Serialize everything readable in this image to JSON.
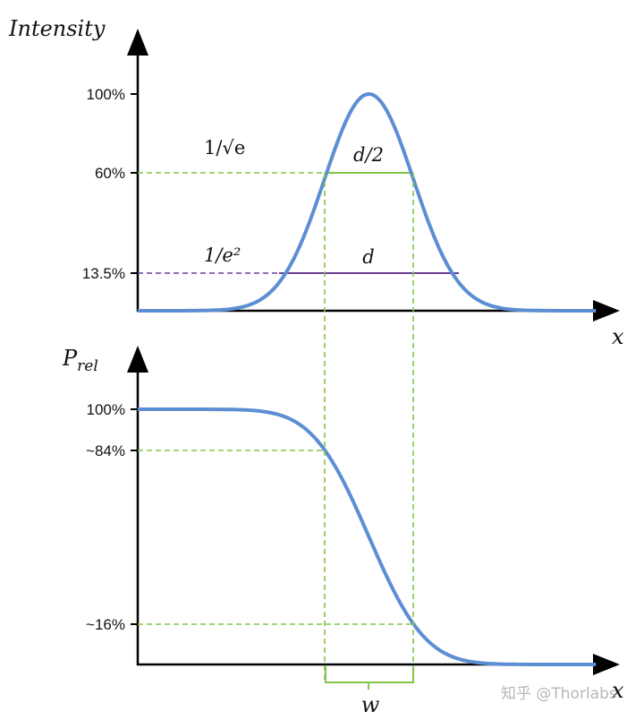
{
  "chart_data": [
    {
      "type": "line",
      "ylabel": "Intensity",
      "xlabel": "x",
      "yticks": [
        "100%",
        "60%",
        "13.5%"
      ],
      "ylim": [
        0,
        100
      ],
      "xlim": [
        -2.5,
        2.5
      ],
      "grid": false,
      "annotations": {
        "sqrt_e": "1/√e",
        "d_half": "d/2",
        "e2": "1/e²",
        "d": "d"
      },
      "levels": [
        {
          "name": "1/√e",
          "y": 60,
          "x_range": [
            -0.5,
            0.5
          ],
          "style": "dashed-green"
        },
        {
          "name": "1/e²",
          "y": 13.5,
          "x_range": [
            -1,
            1
          ],
          "style": "dashed-purple"
        }
      ],
      "series": [
        {
          "x": [
            -2.5,
            -2.0,
            -1.5,
            -1.25,
            -1.0,
            -0.75,
            -0.5,
            -0.25,
            0,
            0.25,
            0.5,
            0.75,
            1.0,
            1.25,
            1.5,
            2.0,
            2.5
          ],
          "y": [
            0.0004,
            0.03,
            1.1,
            4.4,
            13.5,
            32.5,
            60.7,
            88.2,
            100,
            88.2,
            60.7,
            32.5,
            13.5,
            4.4,
            1.1,
            0.03,
            0.0004
          ]
        }
      ]
    },
    {
      "type": "line",
      "ylabel": "P",
      "ylabel_sub": "rel",
      "xlabel": "x",
      "yticks": [
        "100%",
        "~84%",
        "~16%"
      ],
      "ylim": [
        0,
        100
      ],
      "xlim": [
        -2.5,
        2.5
      ],
      "grid": false,
      "annotations": {
        "w": "w"
      },
      "levels": [
        {
          "name": "~84%",
          "y": 84,
          "x": -0.5
        },
        {
          "name": "~16%",
          "y": 16,
          "x": 0.5
        }
      ],
      "series": [
        {
          "x": [
            -2.5,
            -2.0,
            -1.5,
            -1.0,
            -0.75,
            -0.5,
            -0.25,
            0,
            0.25,
            0.5,
            0.75,
            1.0,
            1.5,
            2.0,
            2.5
          ],
          "y": [
            100,
            100,
            99.9,
            97.7,
            93.3,
            84.1,
            69.1,
            50,
            30.9,
            15.9,
            6.7,
            2.3,
            0.1,
            0,
            0
          ]
        }
      ]
    }
  ],
  "colors": {
    "curve": "#5b8ed2",
    "guide": "#84c54a",
    "purple": "#6a3d98",
    "axis": "#000000"
  },
  "watermark": "知乎 @Thorlabs"
}
